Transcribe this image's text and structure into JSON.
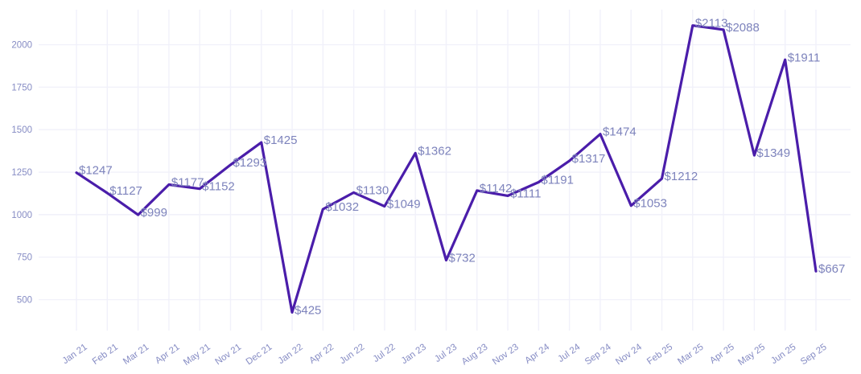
{
  "chart_data": {
    "type": "line",
    "title": "",
    "xlabel": "",
    "ylabel": "",
    "categories": [
      "Jan 21",
      "Feb 21",
      "Mar 21",
      "Apr 21",
      "May 21",
      "Nov 21",
      "Dec 21",
      "Jan 22",
      "Apr 22",
      "Jun 22",
      "Jul 22",
      "Jan 23",
      "Jul 23",
      "Aug 23",
      "Nov 23",
      "Apr 24",
      "Jul 24",
      "Sep 24",
      "Nov 24",
      "Feb 25",
      "Mar 25",
      "Apr 25",
      "May 25",
      "Jun 25",
      "Sep 25"
    ],
    "values": [
      1247,
      1127,
      999,
      1177,
      1152,
      1293,
      1425,
      425,
      1032,
      1130,
      1049,
      1362,
      732,
      1142,
      1111,
      1191,
      1317,
      1474,
      1053,
      1212,
      2113,
      2088,
      1349,
      1911,
      667
    ],
    "data_labels": [
      "$1247",
      "$1127",
      "$999",
      "$1177",
      "$1152",
      "$1293",
      "$1425",
      "$425",
      "$1032",
      "$1130",
      "$1049",
      "$1362",
      "$732",
      "$1142",
      "$1111",
      "$1191",
      "$1317",
      "$1474",
      "$1053",
      "$1212",
      "$2113",
      "$2088",
      "$1349",
      "$1911",
      "$667"
    ],
    "value_prefix": "$",
    "y_ticks": [
      500,
      750,
      1000,
      1250,
      1500,
      1750,
      2000
    ],
    "ylim": [
      318,
      2206
    ],
    "grid": true,
    "legend_position": "none",
    "colors": {
      "line": "#4a1daa",
      "data_label": "#7d83bc",
      "tick_label": "#868cc4",
      "gridline": "#f1f1fa",
      "background": "#ffffff"
    }
  }
}
